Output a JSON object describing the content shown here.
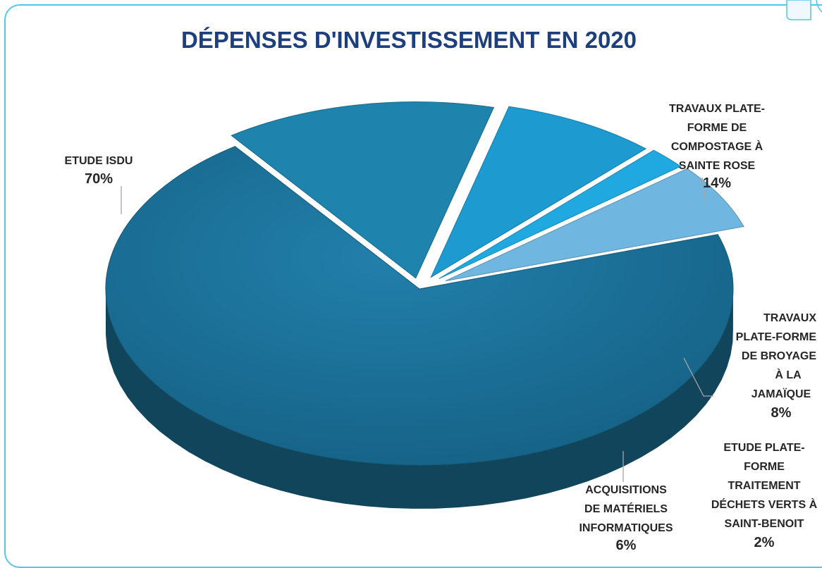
{
  "chart_data": {
    "type": "pie",
    "title": "DÉPENSES D'INVESTISSEMENT EN 2020",
    "slices": [
      {
        "name": "ETUDE ISDU",
        "value": 70,
        "label": "70%",
        "color": "#1b6f95"
      },
      {
        "name": "TRAVAUX PLATE-FORME DE COMPOSTAGE À SAINTE ROSE",
        "value": 14,
        "label": "14%",
        "color": "#1f84ad"
      },
      {
        "name": "TRAVAUX PLATE-FORME DE BROYAGE À LA JAMAÏQUE",
        "value": 8,
        "label": "8%",
        "color": "#1d9bd0"
      },
      {
        "name": "ETUDE PLATE-FORME TRAITEMENT DÉCHETS VERTS À SAINT-BENOIT",
        "value": 2,
        "label": "2%",
        "color": "#20a9e0"
      },
      {
        "name": "ACQUISITIONS DE MATÉRIELS INFORMATIQUES",
        "value": 6,
        "label": "6%",
        "color": "#6fb6e0"
      }
    ],
    "labels": {
      "isdu": [
        "ETUDE ISDU",
        "70%"
      ],
      "compostage": [
        "TRAVAUX PLATE-",
        "FORME DE",
        "COMPOSTAGE À",
        "SAINTE ROSE",
        "14%"
      ],
      "broyage": [
        "TRAVAUX",
        "PLATE-FORME",
        "DE BROYAGE",
        "À LA",
        "JAMAÏQUE",
        "8%"
      ],
      "dechets": [
        "ETUDE PLATE-",
        "FORME",
        "TRAITEMENT",
        "DÉCHETS VERTS À",
        "SAINT-BENOIT",
        "2%"
      ],
      "info": [
        "ACQUISITIONS",
        "DE MATÉRIELS",
        "INFORMATIQUES",
        "6%"
      ]
    }
  }
}
